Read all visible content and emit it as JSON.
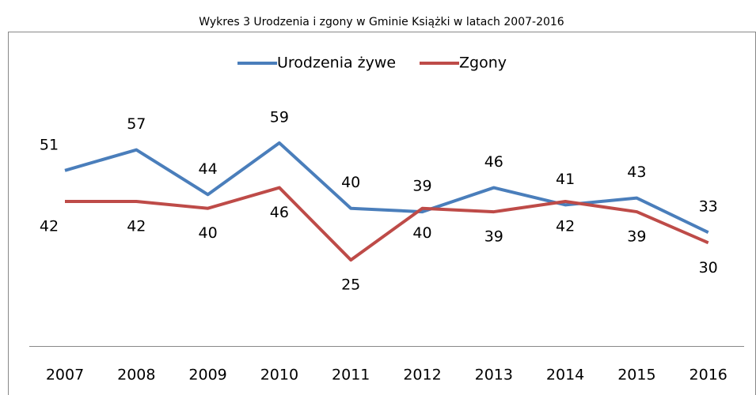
{
  "chart_data": {
    "type": "line",
    "title": "Wykres 3 Urodzenia i zgony w Gminie Książki w latach 2007-2016",
    "categories": [
      "2007",
      "2008",
      "2009",
      "2010",
      "2011",
      "2012",
      "2013",
      "2014",
      "2015",
      "2016"
    ],
    "series": [
      {
        "name": "Urodzenia żywe",
        "color": "#4a7ebb",
        "values": [
          51,
          57,
          44,
          59,
          40,
          39,
          46,
          41,
          43,
          33
        ]
      },
      {
        "name": "Zgony",
        "color": "#be4b48",
        "values": [
          42,
          42,
          40,
          46,
          25,
          40,
          39,
          42,
          39,
          30
        ]
      }
    ],
    "ylim": [
      0,
      70
    ],
    "legend": "top"
  }
}
